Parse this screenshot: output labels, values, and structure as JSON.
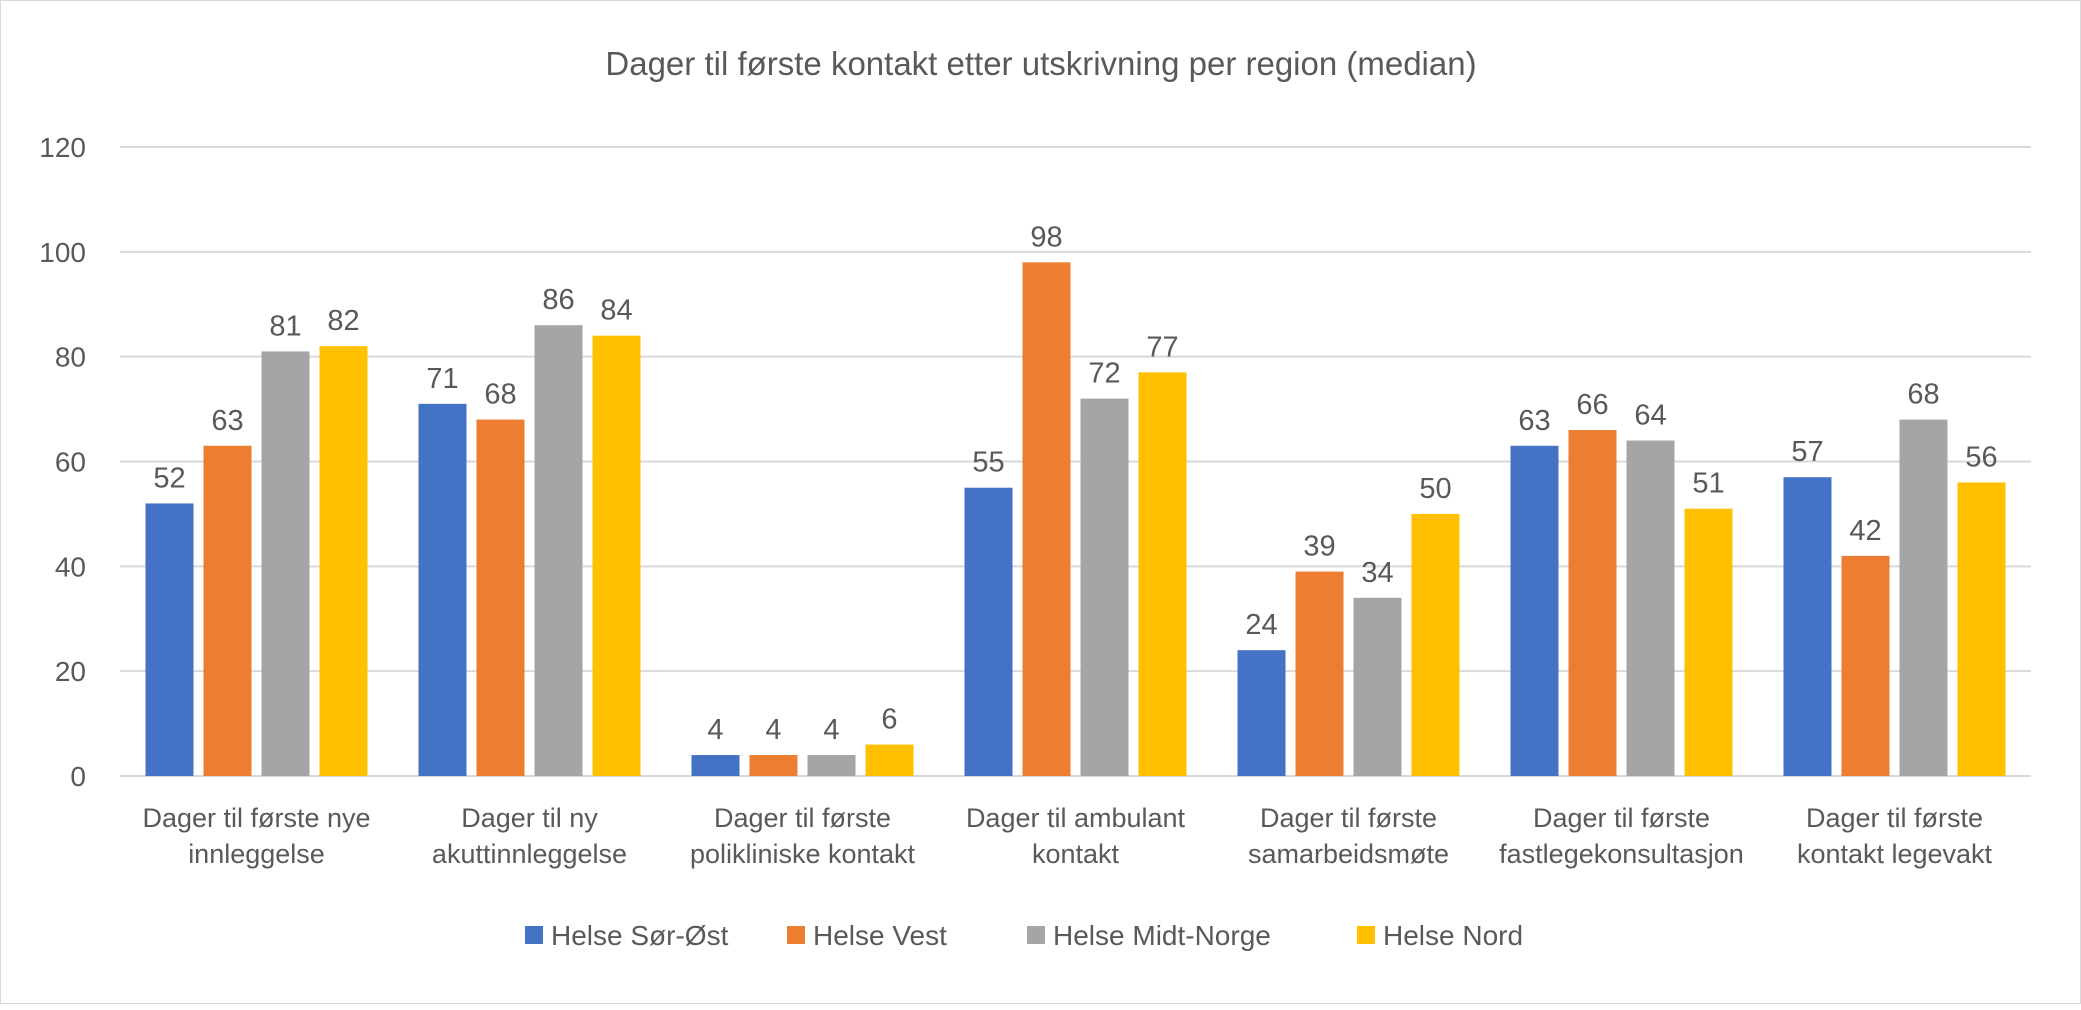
{
  "chart_data": {
    "type": "bar",
    "title": "Dager til første kontakt etter utskrivning per region (median)",
    "xlabel": "",
    "ylabel": "",
    "ylim": [
      0,
      120
    ],
    "yticks": [
      "0",
      "20",
      "40",
      "60",
      "80",
      "100",
      "120"
    ],
    "grid": true,
    "legend_position": "bottom",
    "categories": [
      [
        "Dager til første nye",
        "innleggelse"
      ],
      [
        "Dager til ny",
        "akuttinnleggelse"
      ],
      [
        "Dager til første",
        "polikliniske kontakt"
      ],
      [
        "Dager til ambulant",
        "kontakt"
      ],
      [
        "Dager til første",
        "samarbeidsmøte"
      ],
      [
        "Dager til første",
        "fastlegekonsultasjon"
      ],
      [
        "Dager til første",
        "kontakt legevakt"
      ]
    ],
    "series": [
      {
        "name": "Helse Sør-Øst",
        "color": "#4472C4",
        "values": [
          52,
          71,
          4,
          55,
          24,
          63,
          57
        ]
      },
      {
        "name": "Helse Vest",
        "color": "#ED7D31",
        "values": [
          63,
          68,
          4,
          98,
          39,
          66,
          42
        ]
      },
      {
        "name": "Helse Midt-Norge",
        "color": "#A5A5A5",
        "values": [
          81,
          86,
          4,
          72,
          34,
          64,
          68
        ]
      },
      {
        "name": "Helse Nord",
        "color": "#FFC000",
        "values": [
          82,
          84,
          6,
          77,
          50,
          51,
          56
        ]
      }
    ]
  }
}
